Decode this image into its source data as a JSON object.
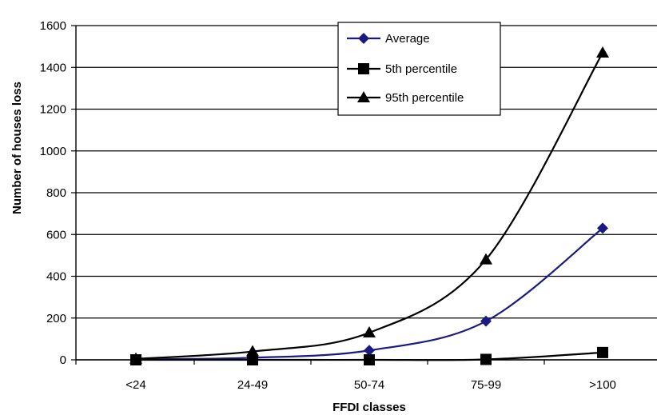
{
  "chart_data": {
    "type": "line",
    "xlabel": "FFDI classes",
    "ylabel": "Number of houses loss",
    "categories": [
      "<24",
      "24-49",
      "50-74",
      "75-99",
      ">100"
    ],
    "ylim": [
      0,
      1600
    ],
    "yticks": [
      0,
      200,
      400,
      600,
      800,
      1000,
      1200,
      1400,
      1600
    ],
    "grid": true,
    "legend_position": "top-center",
    "series": [
      {
        "name": "Average",
        "values": [
          2,
          10,
          45,
          185,
          630
        ],
        "color": "#1a1a80",
        "marker": "diamond"
      },
      {
        "name": "5th percentile",
        "values": [
          0,
          0,
          0,
          2,
          35
        ],
        "color": "#000000",
        "marker": "square"
      },
      {
        "name": "95th percentile",
        "values": [
          5,
          40,
          130,
          480,
          1470
        ],
        "color": "#000000",
        "marker": "triangle"
      }
    ]
  }
}
